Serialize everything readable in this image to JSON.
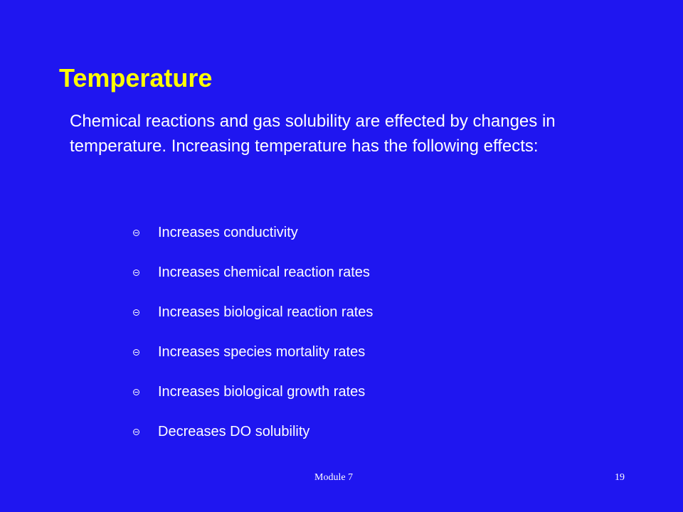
{
  "slide": {
    "title": "Temperature",
    "intro": "Chemical reactions and gas solubility are effected by changes in temperature. Increasing temperature has the following effects:",
    "bullets": [
      "Increases conductivity",
      "Increases chemical reaction rates",
      "Increases biological reaction rates",
      "Increases species mortality rates",
      "Increases biological growth rates",
      "Decreases DO solubility"
    ],
    "footer": {
      "module": "Module 7",
      "page": "19"
    }
  },
  "colors": {
    "background": "#1F16F0",
    "title": "#FFFF00",
    "text": "#FFFFFF"
  }
}
